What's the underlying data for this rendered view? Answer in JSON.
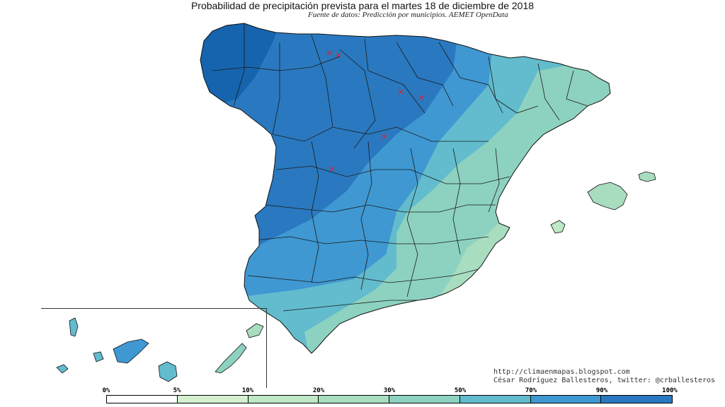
{
  "title": "Probabilidad de precipitación prevista para el martes 18 de diciembre de 2018",
  "subtitle": "Fuente de datos: Predicción por municipios. AEMET OpenData",
  "credits": {
    "url": "http://climaenmapas.blogspot.com",
    "author": "César Rodríguez Ballesteros, twitter: @crballesteros"
  },
  "legend": {
    "labels": [
      "0%",
      "5%",
      "10%",
      "20%",
      "30%",
      "50%",
      "70%",
      "90%",
      "100%"
    ],
    "colors": [
      "#ffffff",
      "#d4f0cf",
      "#bfe8c6",
      "#a8ddc0",
      "#8dd2c0",
      "#62bccd",
      "#3f98d2",
      "#2a79c0",
      "#1564ad"
    ]
  },
  "map": {
    "region": "Península Ibérica (España), Baleares y Canarias",
    "probability_zones": [
      {
        "zone": "Galicia occidental",
        "color": "#1564ad"
      },
      {
        "zone": "Noroeste y Castilla y León",
        "color": "#2a79c0"
      },
      {
        "zone": "Centro y oeste",
        "color": "#3f98d2"
      },
      {
        "zone": "Andalucía occidental y Levante norte",
        "color": "#62bccd"
      },
      {
        "zone": "Este y sureste",
        "color": "#8dd2c0"
      },
      {
        "zone": "Litoral mediterráneo sur",
        "color": "#a8ddc0"
      }
    ],
    "markers": {
      "symbol": "×",
      "color": "#e0202a",
      "count": 6
    }
  }
}
